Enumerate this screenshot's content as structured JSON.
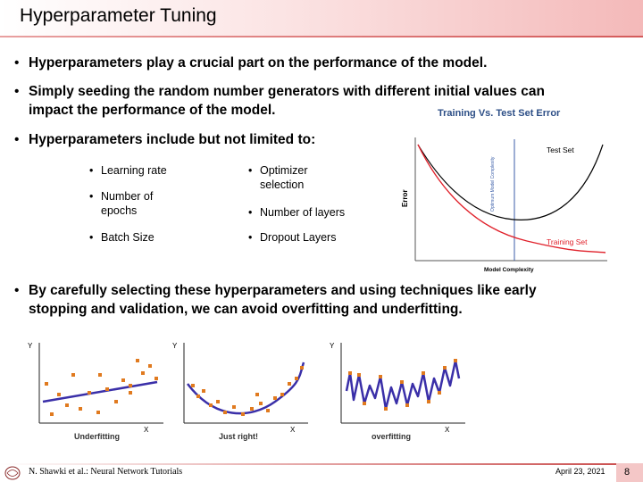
{
  "slide": {
    "title": "Hyperparameter Tuning",
    "bullets": [
      "Hyperparameters play a crucial part on the performance of the model.",
      "Simply seeding the random number generators with different initial values can",
      "impact the performance of the model.",
      "Hyperparameters include but not limited to:",
      "By carefully selecting these hyperparameters and using techniques like early",
      "stopping and validation, we can avoid overfitting and underfitting."
    ],
    "bullet_glyph": "•",
    "subitems": {
      "left": [
        "Learning rate",
        "Number of",
        "epochs",
        "Batch Size"
      ],
      "right": [
        "Optimizer",
        "selection",
        "Number of layers",
        "Dropout Layers"
      ]
    }
  },
  "error_chart": {
    "title": "Training Vs. Test Set Error",
    "test_label": "Test Set",
    "training_label": "Training Set",
    "optimum_label": "Optimum Model Complexity",
    "y_label": "Error",
    "x_label": "Model Complexity",
    "test_color": "#000000",
    "training_color": "#e0202a",
    "optimum_color": "#3b5ea8"
  },
  "fit_plots": {
    "axis_y": "Y",
    "axis_x": "X",
    "labels": [
      "Underfitting",
      "Just right!",
      "overfitting"
    ],
    "point_color": "#e07a1f",
    "curve_color": "#3a2fa8"
  },
  "footer": {
    "author": "N. Shawki et al.: Neural Network Tutorials",
    "date": "April 23, 2021",
    "page": "8"
  }
}
